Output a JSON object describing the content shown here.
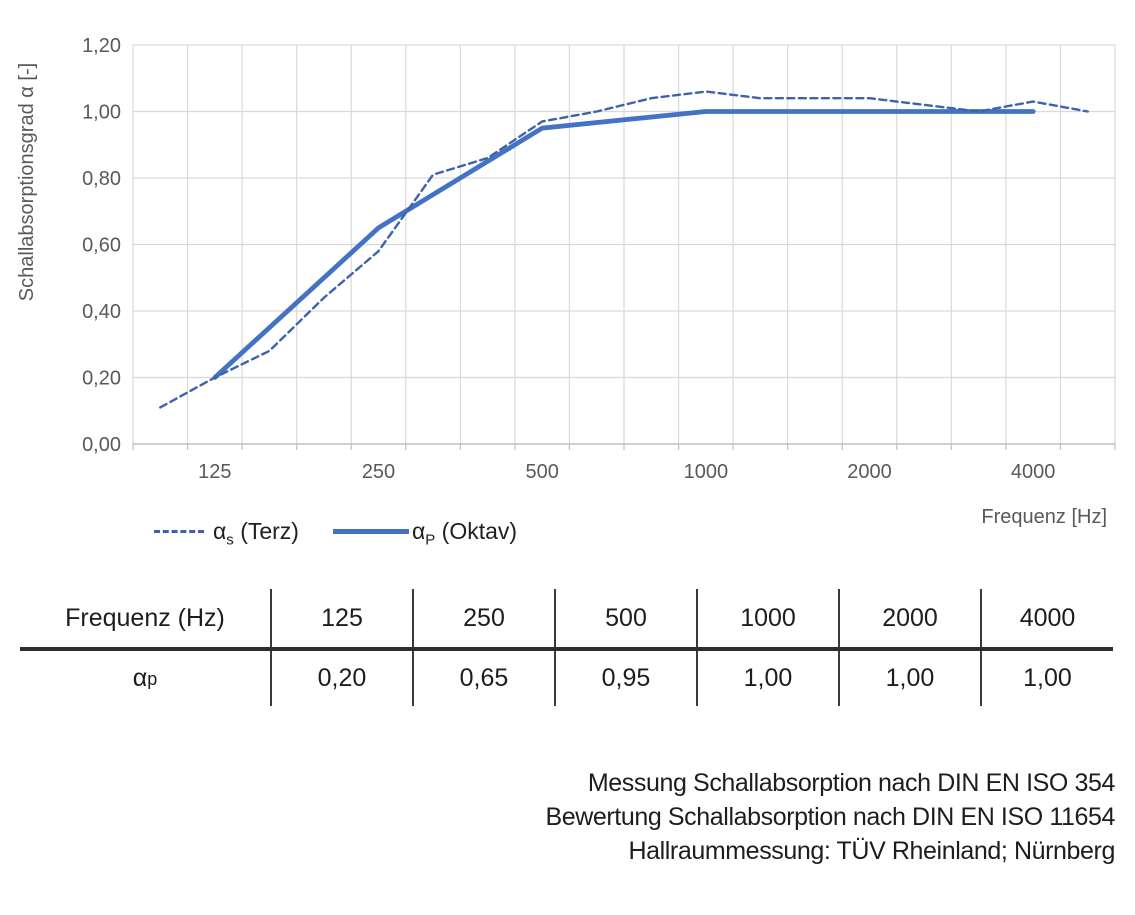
{
  "axis": {
    "y_title": "Schallabsorptionsgrad α [-]",
    "x_title": "Frequenz [Hz]"
  },
  "chart_data": {
    "type": "line",
    "title": "",
    "xlabel": "Frequenz [Hz]",
    "ylabel": "Schallabsorptionsgrad α [-]",
    "x_scale": "log-frequency rendered as equally spaced third-octave categories",
    "categories": [
      100,
      125,
      160,
      200,
      250,
      315,
      400,
      500,
      630,
      800,
      1000,
      1250,
      1600,
      2000,
      2500,
      3150,
      4000,
      5000
    ],
    "x_major_tick_labels": [
      "125",
      "250",
      "500",
      "1000",
      "2000",
      "4000"
    ],
    "x_major_tick_indices": [
      1,
      4,
      7,
      10,
      13,
      16
    ],
    "ylim": [
      0,
      1.2
    ],
    "y_tick_step": 0.2,
    "y_tick_labels": [
      "0,00",
      "0,20",
      "0,40",
      "0,60",
      "0,80",
      "1,00",
      "1,20"
    ],
    "grid": true,
    "legend_position": "bottom-left",
    "colors": {
      "grid": "#D9D9D9",
      "axis_line": "#BFBFBF",
      "tick_text": "#595959"
    },
    "series": [
      {
        "name": "αs (Terz)",
        "style": "dashed",
        "color": "#3E63AC",
        "x": [
          100,
          125,
          160,
          200,
          250,
          315,
          400,
          500,
          630,
          800,
          1000,
          1250,
          1600,
          2000,
          2500,
          3150,
          4000,
          5000
        ],
        "values": [
          0.11,
          0.2,
          0.28,
          0.44,
          0.58,
          0.81,
          0.86,
          0.97,
          1.0,
          1.04,
          1.06,
          1.04,
          1.04,
          1.04,
          1.02,
          1.0,
          1.03,
          1.0
        ]
      },
      {
        "name": "αP (Oktav)",
        "style": "solid",
        "color": "#4472C4",
        "x": [
          125,
          250,
          500,
          1000,
          2000,
          4000
        ],
        "values": [
          0.2,
          0.65,
          0.95,
          1.0,
          1.0,
          1.0
        ]
      }
    ]
  },
  "legend": {
    "entries": [
      {
        "base": "α",
        "sub": "s",
        "rest": "(Terz)"
      },
      {
        "base": "α",
        "sub": "P",
        "rest": "(Oktav)"
      }
    ]
  },
  "table": {
    "columns": [
      "Frequenz (Hz)",
      "125",
      "250",
      "500",
      "1000",
      "2000",
      "4000"
    ],
    "row_label": {
      "base": "α",
      "sub": "p"
    },
    "values": [
      "0,20",
      "0,65",
      "0,95",
      "1,00",
      "1,00",
      "1,00"
    ]
  },
  "footer": {
    "lines": [
      "Messung Schallabsorption nach DIN EN ISO 354",
      "Bewertung Schallabsorption nach DIN EN ISO 11654",
      "Hallraummessung: TÜV Rheinland; Nürnberg"
    ]
  }
}
